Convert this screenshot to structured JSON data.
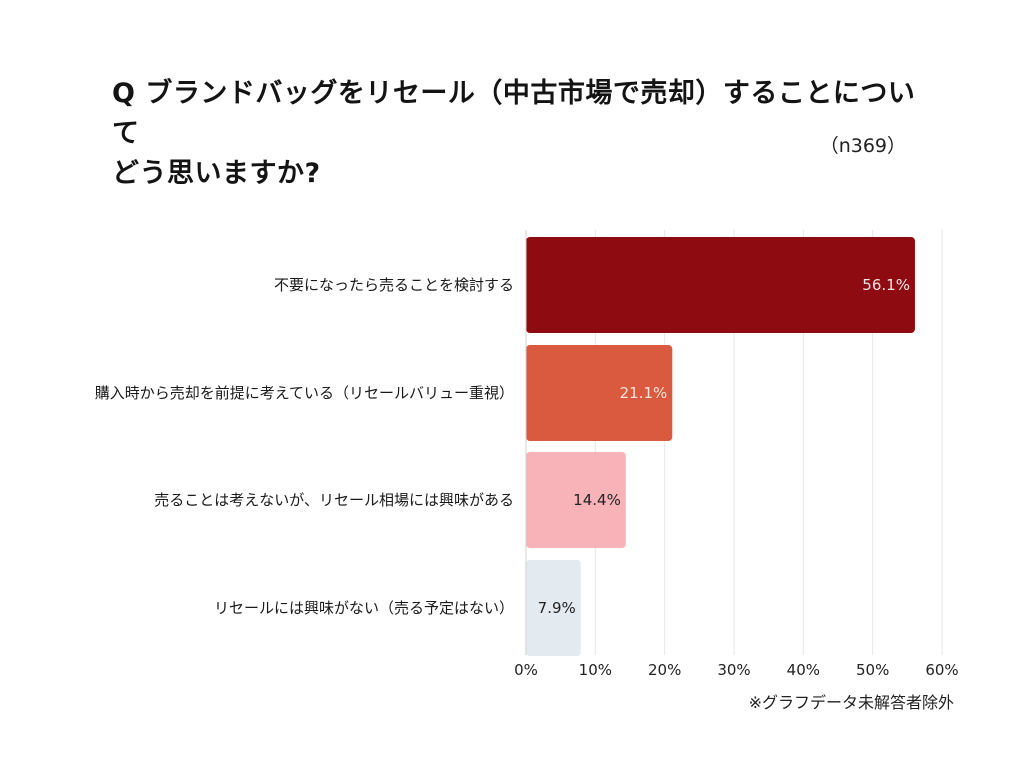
{
  "question": {
    "line1": "Q ブランドバッグをリセール（中古市場で売却）することについて",
    "line2": "どう思いますか?"
  },
  "sample_size": "（n369）",
  "footnote": "※グラフデータ未解答者除外",
  "chart_data": {
    "type": "bar",
    "orientation": "horizontal",
    "categories": [
      "不要になったら売ることを検討する",
      "購入時から売却を前提に考えている（リセールバリュー重視）",
      "売ることは考えないが、リセール相場には興味がある",
      "リセールには興味がない（売る予定はない）"
    ],
    "values": [
      56.1,
      21.1,
      14.4,
      7.9
    ],
    "value_labels": [
      "56.1%",
      "21.1%",
      "14.4%",
      "7.9%"
    ],
    "bar_colors": [
      "#8f0b12",
      "#d95a3f",
      "#f7b3b8",
      "#e3eaf0"
    ],
    "value_label_colors": [
      "#f5e6e6",
      "#f7e3dc",
      "#222222",
      "#222222"
    ],
    "xlim": [
      0,
      60
    ],
    "xticks": [
      0,
      10,
      20,
      30,
      40,
      50,
      60
    ],
    "xtick_labels": [
      "0%",
      "10%",
      "20%",
      "30%",
      "40%",
      "50%",
      "60%"
    ],
    "grid": true,
    "title": "",
    "xlabel": "",
    "ylabel": ""
  }
}
